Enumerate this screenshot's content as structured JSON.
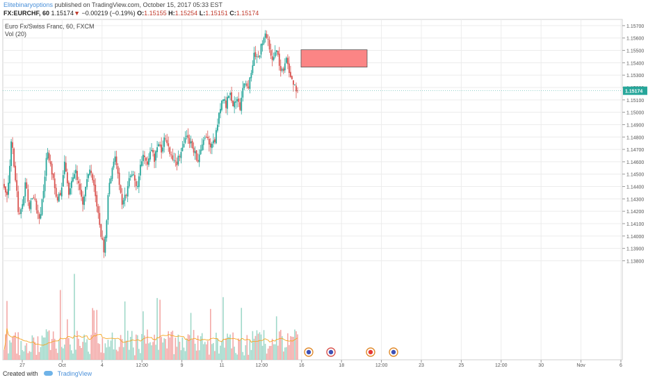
{
  "header": {
    "author": "Elitebinaryoptions",
    "published_text": "published on TradingView.com, October 15, 2017 05:33 EST"
  },
  "ticker": {
    "symbol": "FX:EURCHF, 60",
    "last": "1.15174",
    "arrow": "▼",
    "change": "−0.00219 (−0.19%)",
    "o_label": "O:",
    "o": "1.15155",
    "h_label": "H:",
    "h": "1.15254",
    "l_label": "L:",
    "l": "1.15151",
    "c_label": "C:",
    "c": "1.15174"
  },
  "legend": {
    "instrument": "Euro Fx/Swiss Franc, 60, FXCM",
    "volume": "Vol (20)"
  },
  "price_badge": "1.15174",
  "footer": {
    "created_with": "Created with",
    "brand": "TradingView"
  },
  "colors": {
    "up": "#26a69a",
    "down": "#d9534f",
    "volume_up": "#9fd8c9",
    "volume_down": "#f3a8a6",
    "vol_ma": "#f5a623",
    "zone_fill": "#fb8585",
    "zone_stroke": "#555555",
    "last_price": "#26a69a",
    "grid": "#ececec"
  },
  "chart_data": {
    "type": "candlestick",
    "ylim": [
      1.13,
      1.1575
    ],
    "y_ticks": [
      "1.15700",
      "1.15600",
      "1.15500",
      "1.15400",
      "1.15300",
      "1.15200",
      "1.15100",
      "1.15000",
      "1.14900",
      "1.14800",
      "1.14700",
      "1.14600",
      "1.14500",
      "1.14400",
      "1.14300",
      "1.14200",
      "1.14100",
      "1.14000",
      "1.13900",
      "1.13800"
    ],
    "x_ticks": [
      "27",
      "Oct",
      "4",
      "12:00",
      "9",
      "11",
      "12:00",
      "16",
      "18",
      "12:00",
      "23",
      "25",
      "12:00",
      "30",
      "Nov",
      "6"
    ],
    "close_path": [
      1.1438,
      1.1432,
      1.1478,
      1.1452,
      1.1418,
      1.1422,
      1.1446,
      1.1421,
      1.1432,
      1.1424,
      1.1412,
      1.1438,
      1.1472,
      1.1455,
      1.1442,
      1.1428,
      1.1438,
      1.1462,
      1.1431,
      1.1446,
      1.1451,
      1.1442,
      1.1426,
      1.1446,
      1.1455,
      1.1441,
      1.1422,
      1.1402,
      1.1386,
      1.1432,
      1.1451,
      1.1465,
      1.1445,
      1.1426,
      1.1432,
      1.1448,
      1.1452,
      1.1438,
      1.1455,
      1.1466,
      1.1458,
      1.1472,
      1.1462,
      1.1477,
      1.1469,
      1.1482,
      1.1472,
      1.1462,
      1.1458,
      1.1465,
      1.1475,
      1.1482,
      1.1476,
      1.1468,
      1.1462,
      1.1468,
      1.1482,
      1.1476,
      1.1472,
      1.1479,
      1.1498,
      1.1512,
      1.1505,
      1.1518,
      1.1504,
      1.1512,
      1.1502,
      1.1526,
      1.1518,
      1.1532,
      1.1548,
      1.1544,
      1.1555,
      1.1562,
      1.1554,
      1.1542,
      1.1552,
      1.1538,
      1.1532,
      1.1544,
      1.1528,
      1.152,
      1.15174
    ],
    "zone": {
      "x_range": [
        "17 Oct 00:00",
        "19 Oct 12:00"
      ],
      "y_range": [
        1.15365,
        1.15505
      ]
    },
    "last_price": 1.15174,
    "volume_series": "Vol (20)",
    "grid": true
  }
}
